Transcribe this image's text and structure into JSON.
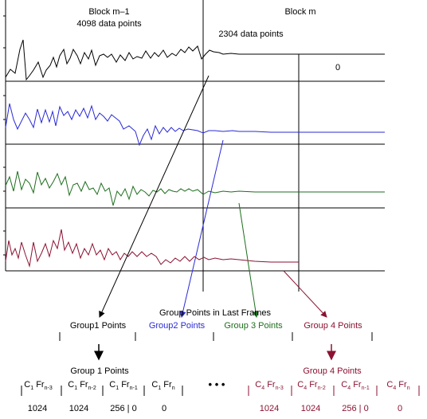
{
  "header": {
    "block_prev": "Block m–1",
    "block_prev_points": "4098 data points",
    "block_cur": "Block m",
    "block_cur_points": "2304 data points",
    "zero_label": "0"
  },
  "colors": {
    "group1": "#000000",
    "group2": "#2a2ad6",
    "group3": "#1e6e1e",
    "group4": "#8b1232"
  },
  "groups_title": "Group Points in Last Frames",
  "groups": [
    {
      "label": "Group1 Points",
      "color": "#000000"
    },
    {
      "label": "Group2 Points",
      "color": "#2a2ad6"
    },
    {
      "label": "Group 3 Points",
      "color": "#1e6e1e"
    },
    {
      "label": "Group 4 Points",
      "color": "#8b1232"
    }
  ],
  "ellipsis": "• • •",
  "frames_left": {
    "title": "Group 1 Points",
    "columns": [
      {
        "c": "C",
        "csub": "1",
        "fr": " Fr",
        "frsub": "n-3",
        "value": "1024"
      },
      {
        "c": "C",
        "csub": "1",
        "fr": " Fr",
        "frsub": "n-2",
        "value": "1024"
      },
      {
        "c": "C",
        "csub": "1",
        "fr": " Fr",
        "frsub": "n-1",
        "value": "256 | 0"
      },
      {
        "c": "C",
        "csub": "1",
        "fr": " Fr",
        "frsub": "n",
        "value": "0"
      }
    ]
  },
  "frames_right": {
    "title": "Group 4 Points",
    "columns": [
      {
        "c": "C",
        "csub": "4",
        "fr": " Fr",
        "frsub": "n-3",
        "value": "1024"
      },
      {
        "c": "C",
        "csub": "4",
        "fr": " Fr",
        "frsub": "n-2",
        "value": "1024"
      },
      {
        "c": "C",
        "csub": "4",
        "fr": " Fr",
        "frsub": "n-1",
        "value": "256 | 0"
      },
      {
        "c": "C",
        "csub": "4",
        "fr": " Fr",
        "frsub": "n",
        "value": "0"
      }
    ]
  }
}
